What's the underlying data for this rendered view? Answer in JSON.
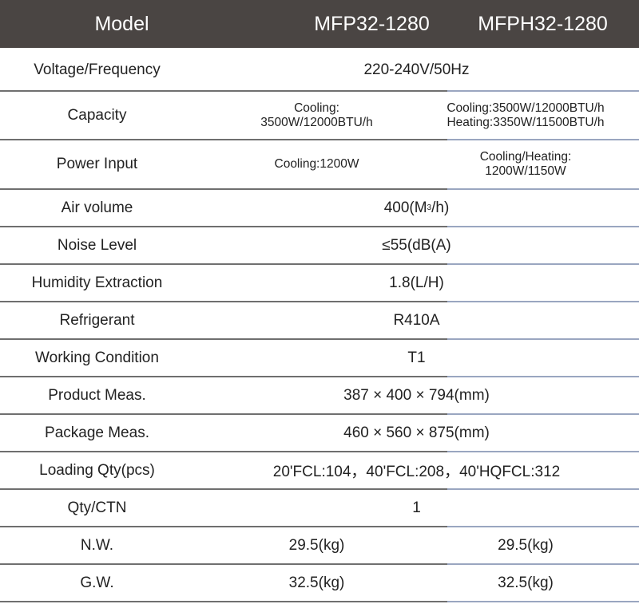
{
  "header": {
    "label": "Model",
    "model_1": "MFP32-1280",
    "model_2": "MFPH32-1280"
  },
  "rows": {
    "voltage": {
      "label": "Voltage/Frequency",
      "value": "220-240V/50Hz"
    },
    "capacity": {
      "label": "Capacity",
      "value_1a": "Cooling:",
      "value_1b": "3500W/12000BTU/h",
      "value_2a": "Cooling:3500W/12000BTU/h",
      "value_2b": "Heating:3350W/11500BTU/h"
    },
    "power": {
      "label": "Power Input",
      "value_1": "Cooling:1200W",
      "value_2a": "Cooling/Heating:",
      "value_2b": "1200W/1150W"
    },
    "air": {
      "label": "Air volume",
      "value_pre": "400(M",
      "value_sup": "3",
      "value_post": "/h)"
    },
    "noise": {
      "label": "Noise Level",
      "value": "≤55(dB(A)"
    },
    "humidity": {
      "label": "Humidity Extraction",
      "value": "1.8(L/H)"
    },
    "refrigerant": {
      "label": "Refrigerant",
      "value": "R410A"
    },
    "working": {
      "label": "Working Condition",
      "value": "T1"
    },
    "product": {
      "label": "Product Meas.",
      "value": "387 × 400 × 794(mm)"
    },
    "package": {
      "label": "Package Meas.",
      "value": "460 × 560 × 875(mm)"
    },
    "loading": {
      "label": "Loading Qty(pcs)",
      "value": "20'FCL:104，40'FCL:208，40'HQFCL:312"
    },
    "qty": {
      "label": "Qty/CTN",
      "value": "1"
    },
    "nw": {
      "label": "N.W.",
      "value_1": "29.5(kg)",
      "value_2": "29.5(kg)"
    },
    "gw": {
      "label": "G.W.",
      "value_1": "32.5(kg)",
      "value_2": "32.5(kg)"
    }
  }
}
